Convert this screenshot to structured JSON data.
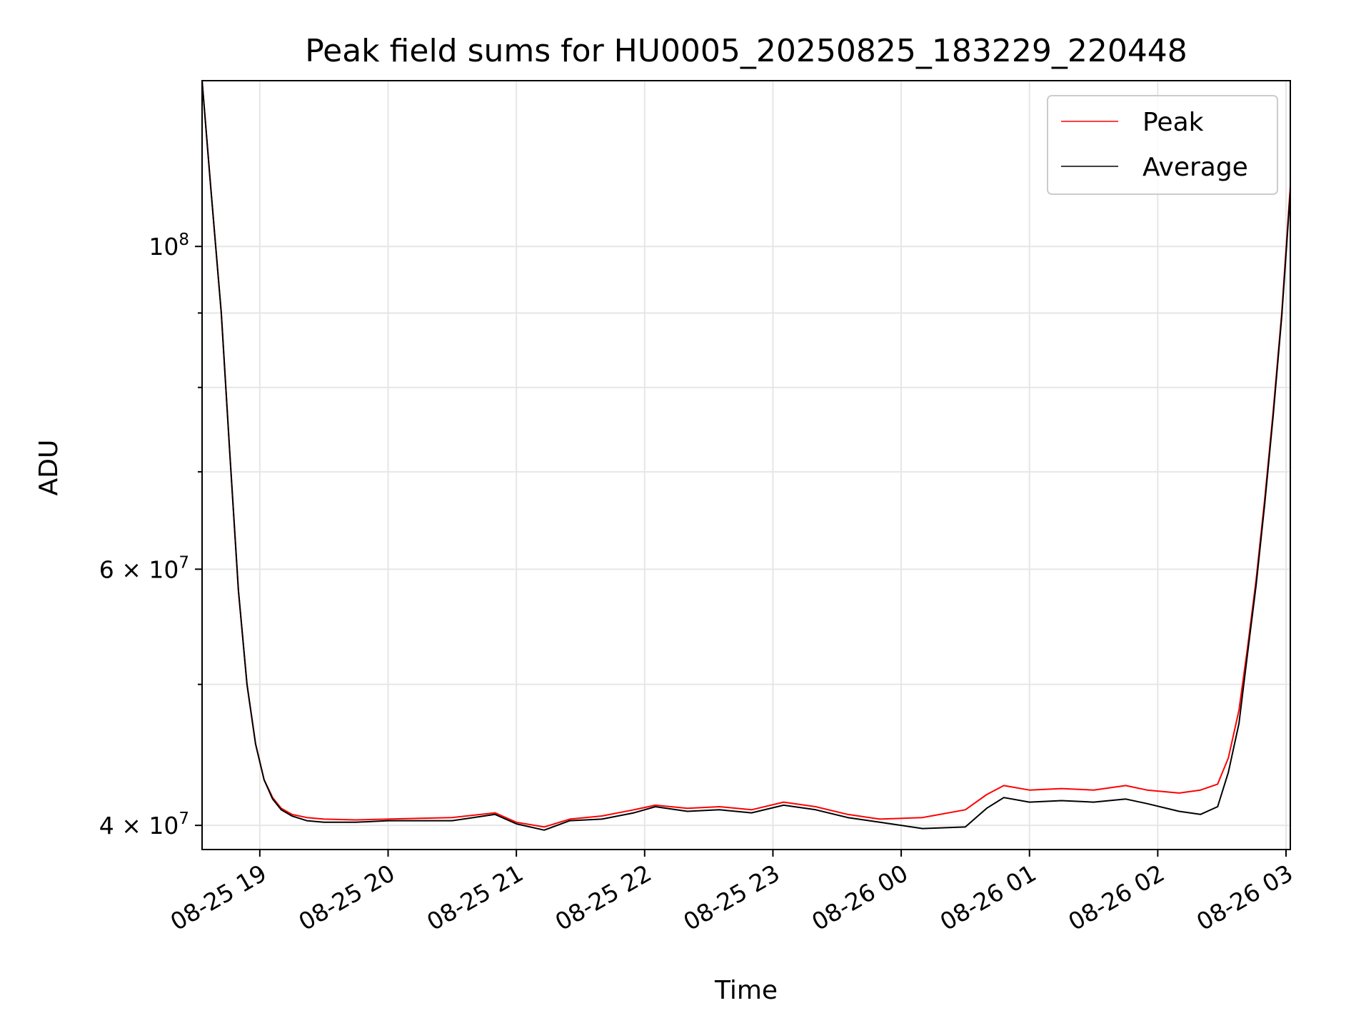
{
  "chart_data": {
    "type": "line",
    "title": "Peak field sums for HU0005_20250825_183229_220448",
    "xlabel": "Time",
    "ylabel": "ADU",
    "y_scale": "log",
    "grid": true,
    "legend_position": "top-right",
    "xlim": [
      "2025-08-25 18:33",
      "2025-08-26 03:02"
    ],
    "ylim": [
      38500000,
      130000000
    ],
    "x_ticks": [
      {
        "value": "2025-08-25 19:00",
        "label": "08-25 19"
      },
      {
        "value": "2025-08-25 20:00",
        "label": "08-25 20"
      },
      {
        "value": "2025-08-25 21:00",
        "label": "08-25 21"
      },
      {
        "value": "2025-08-25 22:00",
        "label": "08-25 22"
      },
      {
        "value": "2025-08-25 23:00",
        "label": "08-25 23"
      },
      {
        "value": "2025-08-26 00:00",
        "label": "08-26 00"
      },
      {
        "value": "2025-08-26 01:00",
        "label": "08-26 01"
      },
      {
        "value": "2025-08-26 02:00",
        "label": "08-26 02"
      },
      {
        "value": "2025-08-26 03:00",
        "label": "08-26 03"
      }
    ],
    "y_ticks": [
      {
        "value": 40000000,
        "base": "4",
        "exp": "7"
      },
      {
        "value": 60000000,
        "base": "6",
        "exp": "7"
      },
      {
        "value": 100000000,
        "base": "",
        "exp": "8"
      }
    ],
    "y_minor_ticks": [
      50000000,
      70000000,
      80000000,
      90000000
    ],
    "series": [
      {
        "name": "Peak",
        "color": "#ff0000",
        "x": [
          "2025-08-25 18:33",
          "2025-08-25 18:37",
          "2025-08-25 18:42",
          "2025-08-25 18:46",
          "2025-08-25 18:50",
          "2025-08-25 18:54",
          "2025-08-25 18:58",
          "2025-08-25 19:02",
          "2025-08-25 19:06",
          "2025-08-25 19:10",
          "2025-08-25 19:15",
          "2025-08-25 19:22",
          "2025-08-25 19:30",
          "2025-08-25 19:45",
          "2025-08-25 20:00",
          "2025-08-25 20:15",
          "2025-08-25 20:30",
          "2025-08-25 20:50",
          "2025-08-25 21:00",
          "2025-08-25 21:13",
          "2025-08-25 21:25",
          "2025-08-25 21:40",
          "2025-08-25 21:55",
          "2025-08-25 22:05",
          "2025-08-25 22:20",
          "2025-08-25 22:35",
          "2025-08-25 22:50",
          "2025-08-25 23:05",
          "2025-08-25 23:20",
          "2025-08-25 23:35",
          "2025-08-25 23:50",
          "2025-08-26 00:10",
          "2025-08-26 00:30",
          "2025-08-26 00:40",
          "2025-08-26 00:48",
          "2025-08-26 01:00",
          "2025-08-26 01:15",
          "2025-08-26 01:30",
          "2025-08-26 01:45",
          "2025-08-26 01:55",
          "2025-08-26 02:10",
          "2025-08-26 02:20",
          "2025-08-26 02:28",
          "2025-08-26 02:33",
          "2025-08-26 02:38",
          "2025-08-26 02:42",
          "2025-08-26 02:46",
          "2025-08-26 02:50",
          "2025-08-26 02:54",
          "2025-08-26 02:58",
          "2025-08-26 03:02"
        ],
        "values": [
          130000000,
          110000000,
          90000000,
          72000000,
          58000000,
          50000000,
          45500000,
          43000000,
          41800000,
          41100000,
          40700000,
          40500000,
          40400000,
          40350000,
          40400000,
          40450000,
          40500000,
          40800000,
          40200000,
          39900000,
          40400000,
          40600000,
          41000000,
          41300000,
          41100000,
          41200000,
          41000000,
          41500000,
          41200000,
          40700000,
          40400000,
          40500000,
          41000000,
          42000000,
          42600000,
          42300000,
          42400000,
          42300000,
          42600000,
          42300000,
          42100000,
          42300000,
          42700000,
          44500000,
          48000000,
          53000000,
          59000000,
          67000000,
          77000000,
          90000000,
          110000000
        ]
      },
      {
        "name": "Average",
        "color": "#000000",
        "x": [
          "2025-08-25 18:33",
          "2025-08-25 18:37",
          "2025-08-25 18:42",
          "2025-08-25 18:46",
          "2025-08-25 18:50",
          "2025-08-25 18:54",
          "2025-08-25 18:58",
          "2025-08-25 19:02",
          "2025-08-25 19:06",
          "2025-08-25 19:10",
          "2025-08-25 19:15",
          "2025-08-25 19:22",
          "2025-08-25 19:30",
          "2025-08-25 19:45",
          "2025-08-25 20:00",
          "2025-08-25 20:15",
          "2025-08-25 20:30",
          "2025-08-25 20:50",
          "2025-08-25 21:00",
          "2025-08-25 21:13",
          "2025-08-25 21:25",
          "2025-08-25 21:40",
          "2025-08-25 21:55",
          "2025-08-25 22:05",
          "2025-08-25 22:20",
          "2025-08-25 22:35",
          "2025-08-25 22:50",
          "2025-08-25 23:05",
          "2025-08-25 23:20",
          "2025-08-25 23:35",
          "2025-08-25 23:50",
          "2025-08-26 00:10",
          "2025-08-26 00:30",
          "2025-08-26 00:40",
          "2025-08-26 00:48",
          "2025-08-26 01:00",
          "2025-08-26 01:15",
          "2025-08-26 01:30",
          "2025-08-26 01:45",
          "2025-08-26 01:55",
          "2025-08-26 02:10",
          "2025-08-26 02:20",
          "2025-08-26 02:28",
          "2025-08-26 02:33",
          "2025-08-26 02:38",
          "2025-08-26 02:42",
          "2025-08-26 02:46",
          "2025-08-26 02:50",
          "2025-08-26 02:54",
          "2025-08-26 02:58",
          "2025-08-26 03:02"
        ],
        "values": [
          130000000,
          110000000,
          90000000,
          72000000,
          58000000,
          50000000,
          45500000,
          43000000,
          41700000,
          41000000,
          40600000,
          40300000,
          40200000,
          40200000,
          40300000,
          40300000,
          40300000,
          40700000,
          40100000,
          39700000,
          40300000,
          40400000,
          40800000,
          41200000,
          40900000,
          41000000,
          40800000,
          41300000,
          41000000,
          40500000,
          40200000,
          39800000,
          39900000,
          41100000,
          41800000,
          41500000,
          41600000,
          41500000,
          41700000,
          41400000,
          40900000,
          40700000,
          41200000,
          43500000,
          47000000,
          52500000,
          58500000,
          66500000,
          76500000,
          89500000,
          109000000
        ]
      }
    ]
  }
}
